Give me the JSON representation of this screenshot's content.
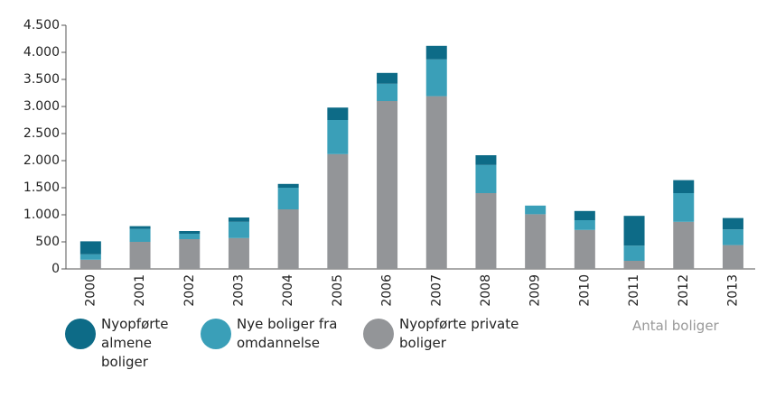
{
  "chart_data": {
    "type": "stacked_bar",
    "categories": [
      "2000",
      "2001",
      "2002",
      "2003",
      "2004",
      "2005",
      "2006",
      "2007",
      "2008",
      "2009",
      "2010",
      "2011",
      "2012",
      "2013"
    ],
    "series": [
      {
        "name": "Nyopførte almene boliger",
        "color": "#0d6b87",
        "values": [
          240,
          50,
          50,
          80,
          70,
          230,
          200,
          250,
          180,
          0,
          170,
          550,
          240,
          210
        ]
      },
      {
        "name": "Nye boliger fra omdannelse",
        "color": "#3a9fb8",
        "values": [
          100,
          240,
          100,
          300,
          400,
          630,
          320,
          680,
          520,
          160,
          180,
          280,
          530,
          290
        ]
      },
      {
        "name": "Nyopførte private boliger",
        "color": "#939598",
        "values": [
          170,
          500,
          550,
          570,
          1100,
          2120,
          3100,
          3190,
          1400,
          1010,
          720,
          150,
          870,
          440
        ]
      }
    ],
    "ylim": [
      0,
      4500
    ],
    "yticks": [
      0,
      500,
      {
        "value": 1000,
        "label": "1.000"
      },
      {
        "value": 1500,
        "label": "1.500"
      },
      {
        "value": 2000,
        "label": "2.000"
      },
      {
        "value": 2500,
        "label": "2.500"
      },
      {
        "value": 3000,
        "label": "3.000"
      },
      {
        "value": 3500,
        "label": "3.500"
      },
      {
        "value": 4000,
        "label": "4.000"
      },
      {
        "value": 4500,
        "label": "4.500"
      }
    ],
    "annotation": "Antal boliger",
    "grid": false
  }
}
